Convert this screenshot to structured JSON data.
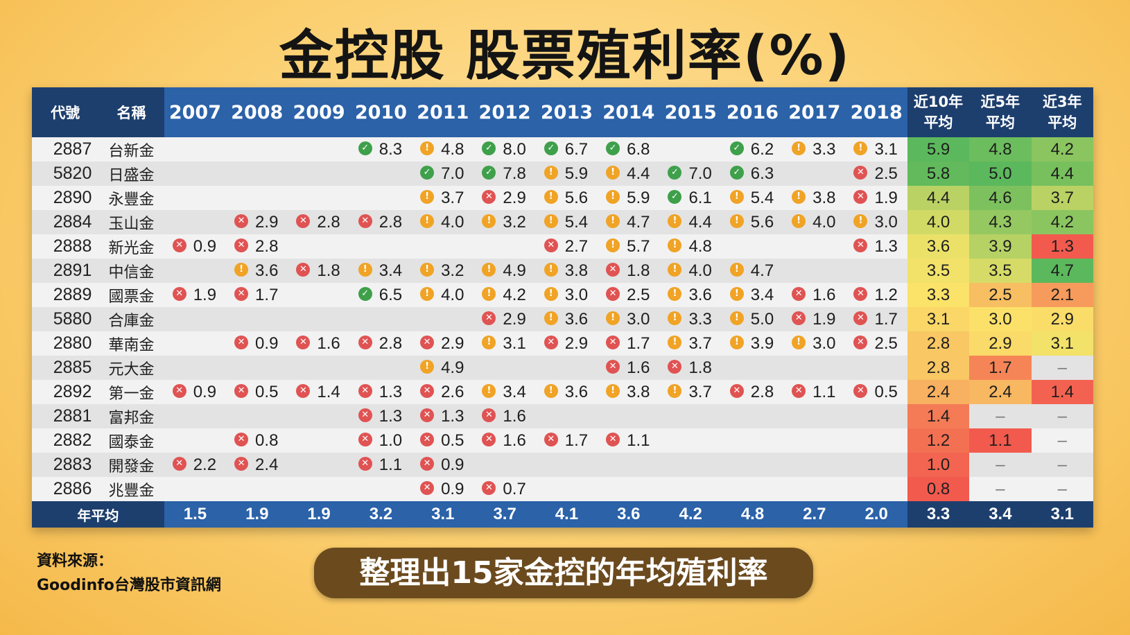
{
  "title": "金控股 股票殖利率(%)",
  "source_label": "資料來源：",
  "source_name": "Goodinfo台灣股市資訊網",
  "caption": "整理出15家金控的年均殖利率",
  "colors": {
    "good": "#3ea04a",
    "warn": "#f0a325",
    "bad": "#e05353",
    "header": "#2b62a8",
    "header_dark": "#1d3f6e"
  },
  "icon_legend": {
    "good-icon": "check mark (green)",
    "warn-icon": "exclamation (orange)",
    "bad-icon": "cross (red)"
  },
  "chart_data": {
    "type": "table",
    "title": "金控股 股票殖利率(%)",
    "headers": {
      "code": "代號",
      "name": "名稱",
      "years": [
        "2007",
        "2008",
        "2009",
        "2010",
        "2011",
        "2012",
        "2013",
        "2014",
        "2015",
        "2016",
        "2017",
        "2018"
      ],
      "averages": [
        {
          "line1": "近10年",
          "line2": "平均"
        },
        {
          "line1": "近5年",
          "line2": "平均"
        },
        {
          "line1": "近3年",
          "line2": "平均"
        }
      ]
    },
    "rows": [
      {
        "code": "2887",
        "name": "台新金",
        "values": [
          "",
          "",
          "",
          "8.3",
          "4.8",
          "8.0",
          "6.7",
          "6.8",
          "",
          "6.2",
          "3.3",
          "3.1"
        ],
        "avg": [
          "5.9",
          "4.8",
          "4.2"
        ]
      },
      {
        "code": "5820",
        "name": "日盛金",
        "values": [
          "",
          "",
          "",
          "",
          "7.0",
          "7.8",
          "5.9",
          "4.4",
          "7.0",
          "6.3",
          "",
          "2.5"
        ],
        "avg": [
          "5.8",
          "5.0",
          "4.4"
        ]
      },
      {
        "code": "2890",
        "name": "永豐金",
        "values": [
          "",
          "",
          "",
          "",
          "3.7",
          "2.9",
          "5.6",
          "5.9",
          "6.1",
          "5.4",
          "3.8",
          "1.9"
        ],
        "avg": [
          "4.4",
          "4.6",
          "3.7"
        ]
      },
      {
        "code": "2884",
        "name": "玉山金",
        "values": [
          "",
          "2.9",
          "2.8",
          "2.8",
          "4.0",
          "3.2",
          "5.4",
          "4.7",
          "4.4",
          "5.6",
          "4.0",
          "3.0"
        ],
        "avg": [
          "4.0",
          "4.3",
          "4.2"
        ]
      },
      {
        "code": "2888",
        "name": "新光金",
        "values": [
          "0.9",
          "2.8",
          "",
          "",
          "",
          "",
          "2.7",
          "5.7",
          "4.8",
          "",
          "",
          "1.3"
        ],
        "avg": [
          "3.6",
          "3.9",
          "1.3"
        ]
      },
      {
        "code": "2891",
        "name": "中信金",
        "values": [
          "",
          "3.6",
          "1.8",
          "3.4",
          "3.2",
          "4.9",
          "3.8",
          "1.8",
          "4.0",
          "4.7",
          "",
          ""
        ],
        "avg": [
          "3.5",
          "3.5",
          "4.7"
        ]
      },
      {
        "code": "2889",
        "name": "國票金",
        "values": [
          "1.9",
          "1.7",
          "",
          "6.5",
          "4.0",
          "4.2",
          "3.0",
          "2.5",
          "3.6",
          "3.4",
          "1.6",
          "1.2"
        ],
        "avg": [
          "3.3",
          "2.5",
          "2.1"
        ]
      },
      {
        "code": "5880",
        "name": "合庫金",
        "values": [
          "",
          "",
          "",
          "",
          "",
          "2.9",
          "3.6",
          "3.0",
          "3.3",
          "5.0",
          "1.9",
          "1.7"
        ],
        "avg": [
          "3.1",
          "3.0",
          "2.9"
        ]
      },
      {
        "code": "2880",
        "name": "華南金",
        "values": [
          "",
          "0.9",
          "1.6",
          "2.8",
          "2.9",
          "3.1",
          "2.9",
          "1.7",
          "3.7",
          "3.9",
          "3.0",
          "2.5"
        ],
        "avg": [
          "2.8",
          "2.9",
          "3.1"
        ]
      },
      {
        "code": "2885",
        "name": "元大金",
        "values": [
          "",
          "",
          "",
          "",
          "4.9",
          "",
          "",
          "1.6",
          "1.8",
          "",
          "",
          ""
        ],
        "avg": [
          "2.8",
          "1.7",
          "–"
        ]
      },
      {
        "code": "2892",
        "name": "第一金",
        "values": [
          "0.9",
          "0.5",
          "1.4",
          "1.3",
          "2.6",
          "3.4",
          "3.6",
          "3.8",
          "3.7",
          "2.8",
          "1.1",
          "0.5"
        ],
        "avg": [
          "2.4",
          "2.4",
          "1.4"
        ]
      },
      {
        "code": "2881",
        "name": "富邦金",
        "values": [
          "",
          "",
          "",
          "1.3",
          "1.3",
          "1.6",
          "",
          "",
          "",
          "",
          "",
          ""
        ],
        "avg": [
          "1.4",
          "–",
          "–"
        ]
      },
      {
        "code": "2882",
        "name": "國泰金",
        "values": [
          "",
          "0.8",
          "",
          "1.0",
          "0.5",
          "1.6",
          "1.7",
          "1.1",
          "",
          "",
          "",
          ""
        ],
        "avg": [
          "1.2",
          "1.1",
          "–"
        ]
      },
      {
        "code": "2883",
        "name": "開發金",
        "values": [
          "2.2",
          "2.4",
          "",
          "1.1",
          "0.9",
          "",
          "",
          "",
          "",
          "",
          "",
          ""
        ],
        "avg": [
          "1.0",
          "–",
          "–"
        ]
      },
      {
        "code": "2886",
        "name": "兆豐金",
        "values": [
          "",
          "",
          "",
          "",
          "0.9",
          "0.7",
          "",
          "",
          "",
          "",
          "",
          ""
        ],
        "avg": [
          "0.8",
          "–",
          "–"
        ]
      }
    ],
    "footer": {
      "label": "年平均",
      "values": [
        "1.5",
        "1.9",
        "1.9",
        "3.2",
        "3.1",
        "3.7",
        "4.1",
        "3.6",
        "4.2",
        "4.8",
        "2.7",
        "2.0"
      ],
      "avg": [
        "3.3",
        "3.4",
        "3.1"
      ]
    },
    "avg_color_scale": {
      "low": "#f25a4e",
      "mid": "#fbe56a",
      "high": "#5cb85c"
    }
  }
}
